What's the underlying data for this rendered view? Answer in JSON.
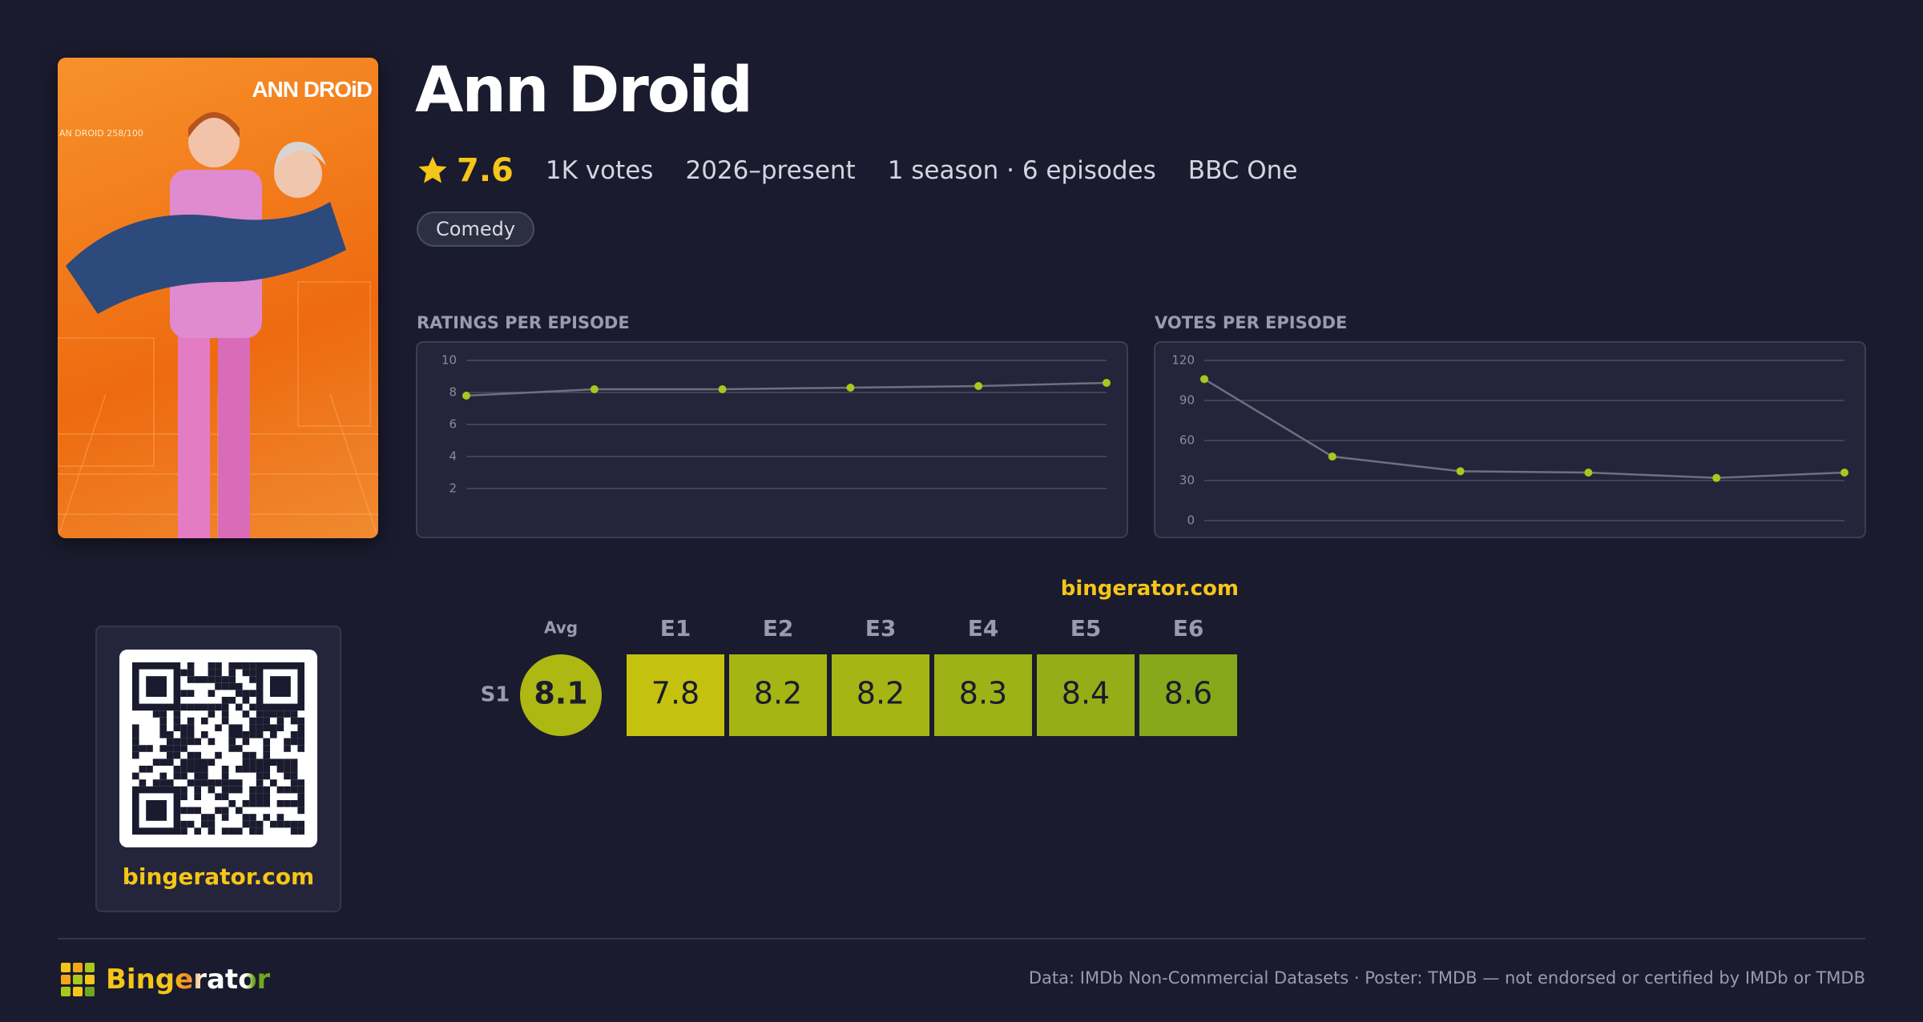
{
  "header": {
    "title": "Ann Droid",
    "rating": 7.6,
    "votes": "1K votes",
    "years": "2026–present",
    "seasons": "1 season · 6 episodes",
    "network": "BBC One",
    "genres": [
      "Comedy"
    ]
  },
  "poster": {
    "title": "ANN DROiD",
    "caption": "AN DROID 258/100"
  },
  "chart_data": [
    {
      "type": "line",
      "title": "RATINGS PER EPISODE",
      "values": [
        7.8,
        8.2,
        8.2,
        8.3,
        8.4,
        8.6
      ],
      "color": "#a8c81c",
      "line_color": "#6e7080",
      "ylim": [
        0,
        10
      ],
      "yticks": [
        2,
        4,
        6,
        8,
        10
      ],
      "grid": true
    },
    {
      "type": "line",
      "title": "VOTES PER EPISODE",
      "values": [
        106,
        48,
        37,
        36,
        32,
        36
      ],
      "color": "#a8c81c",
      "line_color": "#6e7080",
      "ylim": [
        0,
        120
      ],
      "yticks": [
        0,
        30,
        60,
        90,
        120
      ],
      "grid": true
    }
  ],
  "heatmap": {
    "brand": "bingerator.com",
    "avg_label": "Avg",
    "episodes": [
      "E1",
      "E2",
      "E3",
      "E4",
      "E5",
      "E6"
    ],
    "seasons": [
      {
        "label": "S1",
        "avg": 8.1,
        "ratings": [
          7.8,
          8.2,
          8.2,
          8.3,
          8.4,
          8.6
        ]
      }
    ]
  },
  "qr": {
    "caption": "bingerator.com"
  },
  "footer": {
    "brand": "Bingerator",
    "credits": "Data: IMDb Non-Commercial Datasets · Poster: TMDB — not endorsed or certified by IMDb or TMDB"
  }
}
